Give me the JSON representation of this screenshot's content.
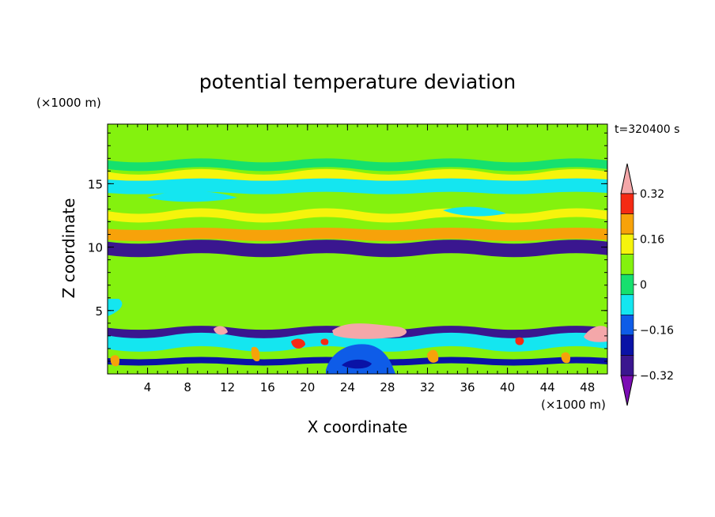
{
  "chart_data": {
    "type": "heatmap",
    "title": "potential temperature deviation",
    "time_label": "t=320400 s",
    "xlabel": "X coordinate",
    "ylabel": "Z coordinate",
    "x_unit": "(×1000 m)",
    "z_unit": "(×1000 m)",
    "xlim": [
      0,
      50
    ],
    "zlim": [
      0,
      19.7
    ],
    "x_ticks": [
      4,
      8,
      12,
      16,
      20,
      24,
      28,
      32,
      36,
      40,
      44,
      48
    ],
    "z_ticks": [
      5,
      10,
      15
    ],
    "colorbar": {
      "levels": [
        -0.4,
        -0.32,
        -0.24,
        -0.16,
        -0.08,
        0,
        0.08,
        0.16,
        0.24,
        0.32,
        0.4
      ],
      "labels": [
        "0.32",
        "0.16",
        "0",
        "−0.16",
        "−0.32"
      ],
      "label_values": [
        0.32,
        0.16,
        0,
        -0.16,
        -0.32
      ],
      "colors": [
        "#7b0db4",
        "#3a168f",
        "#0a12a6",
        "#0e5ce8",
        "#14e6f0",
        "#16e06e",
        "#84f20e",
        "#f6f40c",
        "#f7a20a",
        "#f52a14",
        "#f4a7a9"
      ]
    },
    "bands": [
      {
        "z": 17.8,
        "value": 0.05
      },
      {
        "z": 16.5,
        "value": 0.0
      },
      {
        "z": 15.5,
        "value": 0.15
      },
      {
        "z": 14.8,
        "value": -0.1
      },
      {
        "z": 13.3,
        "value": 0.05
      },
      {
        "z": 12.5,
        "value": 0.15
      },
      {
        "z": 11.0,
        "value": 0.22
      },
      {
        "z": 9.9,
        "value": -0.35
      },
      {
        "z": 8.0,
        "value": 0.05
      },
      {
        "z": 6.5,
        "value": 0.02
      },
      {
        "z": 3.2,
        "value": -0.35
      },
      {
        "z": 2.5,
        "value": -0.15
      },
      {
        "z": 1.0,
        "value": -0.25
      }
    ]
  }
}
